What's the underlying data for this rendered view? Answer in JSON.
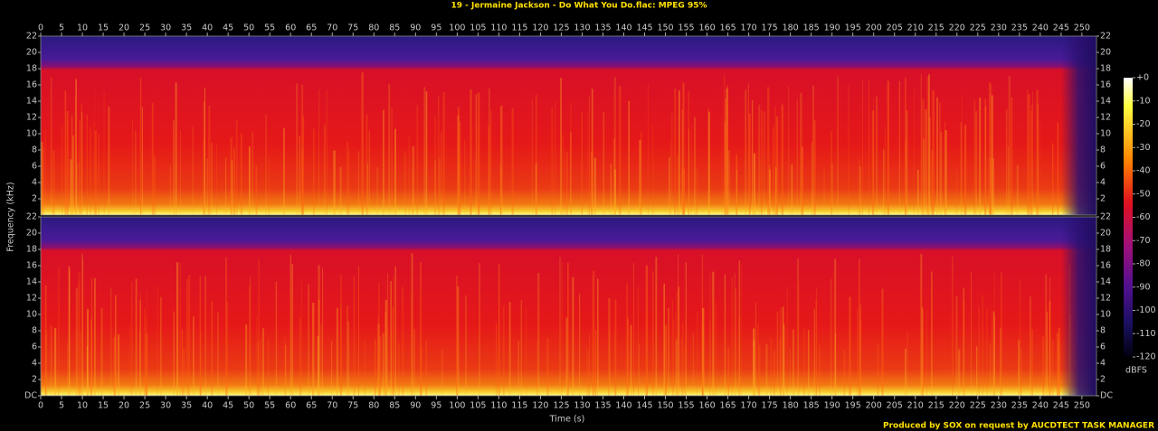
{
  "chart_data": {
    "type": "spectrogram",
    "title": "19 - Jermaine Jackson - Do What You Do.flac: MPEG 95%",
    "x_label": "Time (s)",
    "y_label": "Frequency (kHz)",
    "footer": "Produced by SOX on request by AUCDTECT TASK MANAGER",
    "xlim": [
      0,
      253.5
    ],
    "xticks": [
      0,
      5,
      10,
      15,
      20,
      25,
      30,
      35,
      40,
      45,
      50,
      55,
      60,
      65,
      70,
      75,
      80,
      85,
      90,
      95,
      100,
      105,
      110,
      115,
      120,
      125,
      130,
      135,
      140,
      145,
      150,
      155,
      160,
      165,
      170,
      175,
      180,
      185,
      190,
      195,
      200,
      205,
      210,
      215,
      220,
      225,
      230,
      235,
      240,
      245,
      250
    ],
    "panels": [
      {
        "ylim": [
          0,
          22
        ],
        "yticks": [
          2,
          4,
          6,
          8,
          10,
          12,
          14,
          16,
          18,
          20,
          22
        ]
      },
      {
        "ylim": [
          0,
          22
        ],
        "yticks": [
          {
            "value": 0,
            "label": "DC"
          },
          2,
          4,
          6,
          8,
          10,
          12,
          14,
          16,
          18,
          20,
          22
        ]
      }
    ],
    "colorbar": {
      "label": "dBFS",
      "lim": [
        -120,
        0
      ],
      "ticks": [
        {
          "value": 0,
          "label": "+0"
        },
        -10,
        -20,
        -30,
        -40,
        -50,
        -60,
        -70,
        -80,
        -90,
        -100,
        -110,
        -120
      ]
    }
  }
}
